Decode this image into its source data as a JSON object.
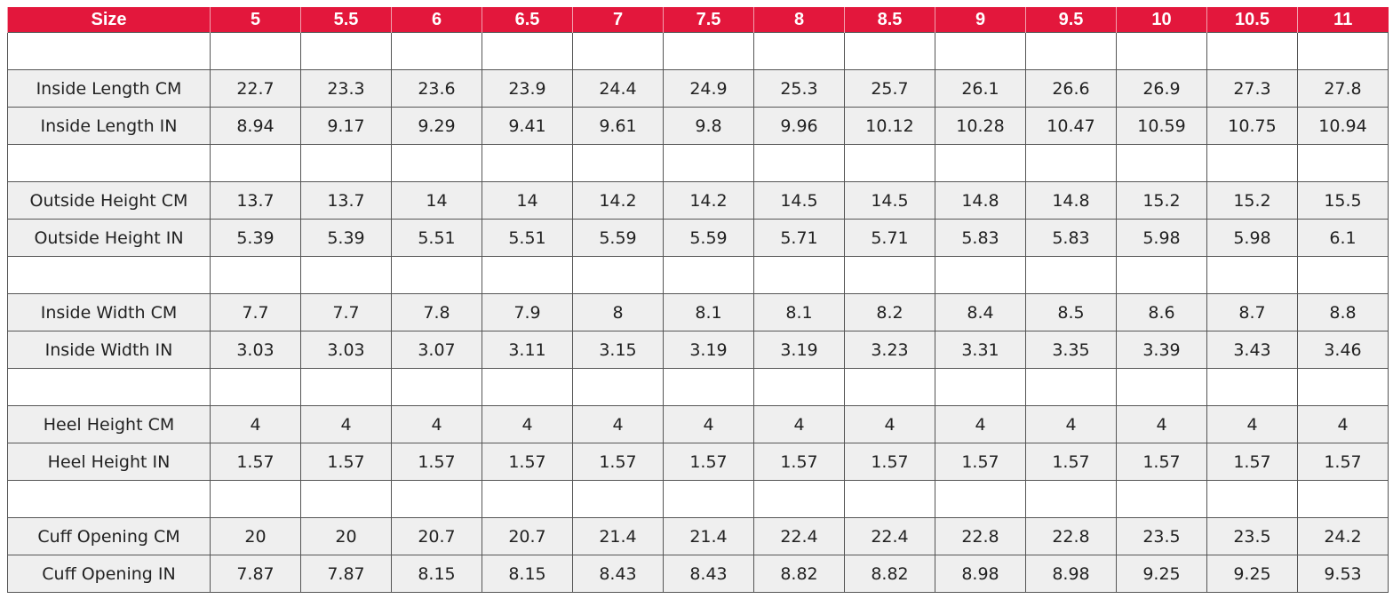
{
  "table": {
    "header": [
      "Size",
      "5",
      "5.5",
      "6",
      "6.5",
      "7",
      "7.5",
      "8",
      "8.5",
      "9",
      "9.5",
      "10",
      "10.5",
      "11"
    ],
    "groups": [
      [
        [
          "Inside Length CM",
          "22.7",
          "23.3",
          "23.6",
          "23.9",
          "24.4",
          "24.9",
          "25.3",
          "25.7",
          "26.1",
          "26.6",
          "26.9",
          "27.3",
          "27.8"
        ],
        [
          "Inside Length IN",
          "8.94",
          "9.17",
          "9.29",
          "9.41",
          "9.61",
          "9.8",
          "9.96",
          "10.12",
          "10.28",
          "10.47",
          "10.59",
          "10.75",
          "10.94"
        ]
      ],
      [
        [
          "Outside Height CM",
          "13.7",
          "13.7",
          "14",
          "14",
          "14.2",
          "14.2",
          "14.5",
          "14.5",
          "14.8",
          "14.8",
          "15.2",
          "15.2",
          "15.5"
        ],
        [
          "Outside Height IN",
          "5.39",
          "5.39",
          "5.51",
          "5.51",
          "5.59",
          "5.59",
          "5.71",
          "5.71",
          "5.83",
          "5.83",
          "5.98",
          "5.98",
          "6.1"
        ]
      ],
      [
        [
          "Inside Width CM",
          "7.7",
          "7.7",
          "7.8",
          "7.9",
          "8",
          "8.1",
          "8.1",
          "8.2",
          "8.4",
          "8.5",
          "8.6",
          "8.7",
          "8.8"
        ],
        [
          "Inside Width IN",
          "3.03",
          "3.03",
          "3.07",
          "3.11",
          "3.15",
          "3.19",
          "3.19",
          "3.23",
          "3.31",
          "3.35",
          "3.39",
          "3.43",
          "3.46"
        ]
      ],
      [
        [
          "Heel Height CM",
          "4",
          "4",
          "4",
          "4",
          "4",
          "4",
          "4",
          "4",
          "4",
          "4",
          "4",
          "4",
          "4"
        ],
        [
          "Heel Height IN",
          "1.57",
          "1.57",
          "1.57",
          "1.57",
          "1.57",
          "1.57",
          "1.57",
          "1.57",
          "1.57",
          "1.57",
          "1.57",
          "1.57",
          "1.57"
        ]
      ],
      [
        [
          "Cuff Opening CM",
          "20",
          "20",
          "20.7",
          "20.7",
          "21.4",
          "21.4",
          "22.4",
          "22.4",
          "22.8",
          "22.8",
          "23.5",
          "23.5",
          "24.2"
        ],
        [
          "Cuff Opening IN",
          "7.87",
          "7.87",
          "8.15",
          "8.15",
          "8.43",
          "8.43",
          "8.82",
          "8.82",
          "8.98",
          "8.98",
          "9.25",
          "9.25",
          "9.53"
        ]
      ]
    ]
  }
}
